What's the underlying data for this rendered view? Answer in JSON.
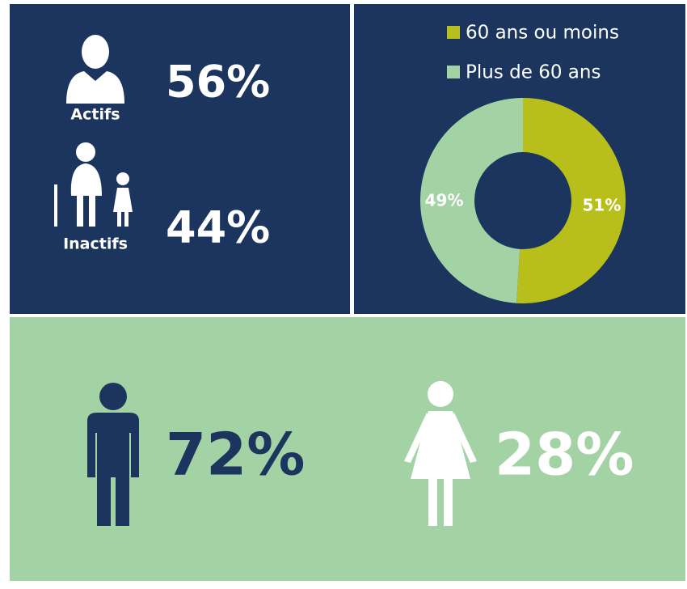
{
  "workers": {
    "active": {
      "label": "Actifs",
      "value": "56%"
    },
    "inactive": {
      "label": "Inactifs",
      "value": "44%"
    }
  },
  "chart_data": {
    "type": "pie",
    "categories": [
      "60 ans ou moins",
      "Plus de 60 ans"
    ],
    "values": [
      51,
      49
    ],
    "value_labels": [
      "51%",
      "49%"
    ],
    "colors": [
      "#b9bf1a",
      "#a3d3a5"
    ],
    "donut": true,
    "legend": "top"
  },
  "gender": {
    "men": "72%",
    "women": "28%"
  }
}
